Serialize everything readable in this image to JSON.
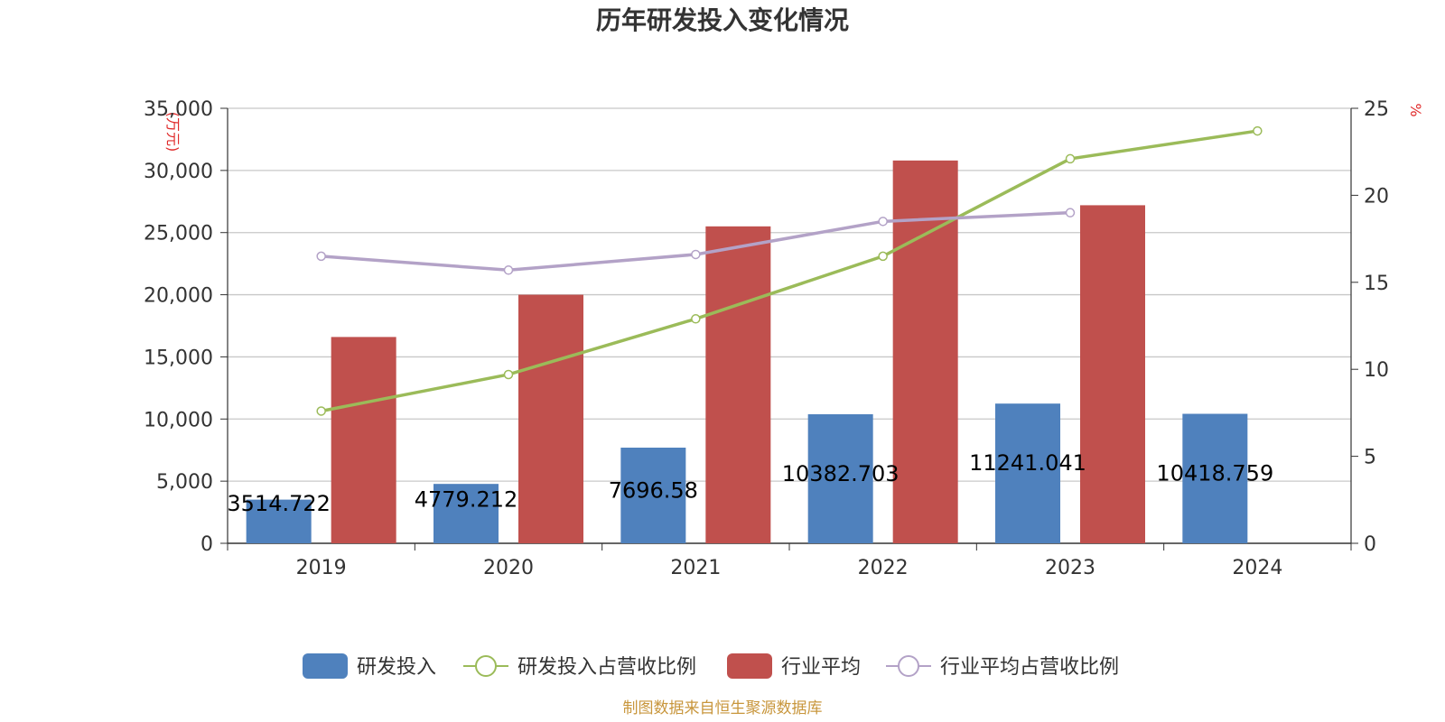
{
  "chart_data": {
    "type": "bar",
    "title": "历年研发投入变化情况",
    "left_axis_unit": "(万元)",
    "right_axis_unit": "%",
    "categories": [
      "2019",
      "2020",
      "2021",
      "2022",
      "2023",
      "2024"
    ],
    "left_axis": {
      "ylim": [
        0,
        35000
      ],
      "ticks": [
        0,
        5000,
        10000,
        15000,
        20000,
        25000,
        30000,
        35000
      ],
      "tick_labels": [
        "0",
        "5,000",
        "10,000",
        "15,000",
        "20,000",
        "25,000",
        "30,000",
        "35,000"
      ]
    },
    "right_axis": {
      "ylim": [
        0,
        25
      ],
      "ticks": [
        0,
        5,
        10,
        15,
        20,
        25
      ],
      "tick_labels": [
        "0",
        "5",
        "10",
        "15",
        "20",
        "25"
      ]
    },
    "grid": true,
    "legend_position": "bottom",
    "series": [
      {
        "name": "研发投入",
        "kind": "bar",
        "axis": "left",
        "color": "#4f81bd",
        "values": [
          3514.722,
          4779.212,
          7696.58,
          10382.703,
          11241.041,
          10418.759
        ],
        "data_labels": [
          "3514.722",
          "4779.212",
          "7696.58",
          "10382.703",
          "11241.041",
          "10418.759"
        ]
      },
      {
        "name": "研发投入占营收比例",
        "kind": "line",
        "axis": "right",
        "color": "#9bbb59",
        "values": [
          7.6,
          9.7,
          12.9,
          16.5,
          22.1,
          23.7
        ]
      },
      {
        "name": "行业平均",
        "kind": "bar",
        "axis": "left",
        "color": "#c0504d",
        "values": [
          16600,
          20000,
          25500,
          30800,
          27200,
          null
        ]
      },
      {
        "name": "行业平均占营收比例",
        "kind": "line",
        "axis": "right",
        "color": "#b3a2c7",
        "values": [
          16.5,
          15.7,
          16.6,
          18.5,
          19.0,
          null
        ]
      }
    ],
    "source": "制图数据来自恒生聚源数据库"
  }
}
